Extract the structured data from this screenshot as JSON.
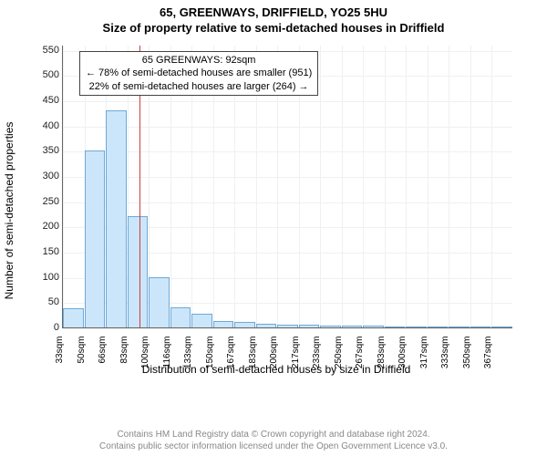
{
  "header": {
    "address": "65, GREENWAYS, DRIFFIELD, YO25 5HU",
    "subtitle": "Size of property relative to semi-detached houses in Driffield"
  },
  "chart": {
    "type": "histogram",
    "ylabel": "Number of semi-detached properties",
    "xlabel": "Distribution of semi-detached houses by size in Driffield",
    "ylim": [
      0,
      560
    ],
    "ytick_step": 50,
    "yticks": [
      0,
      50,
      100,
      150,
      200,
      250,
      300,
      350,
      400,
      450,
      500,
      550
    ],
    "xticks": [
      "33sqm",
      "50sqm",
      "66sqm",
      "83sqm",
      "100sqm",
      "116sqm",
      "133sqm",
      "150sqm",
      "167sqm",
      "183sqm",
      "200sqm",
      "217sqm",
      "233sqm",
      "250sqm",
      "267sqm",
      "283sqm",
      "300sqm",
      "317sqm",
      "333sqm",
      "350sqm",
      "367sqm"
    ],
    "xtick_step_sqm": 16.66,
    "x_min_sqm": 33,
    "x_max_sqm": 380,
    "bar_color": "#cbe6fa",
    "bar_border": "#6ea8d8",
    "grid_color": "#eef0f2",
    "background_color": "#ffffff",
    "values": [
      38,
      350,
      430,
      220,
      100,
      40,
      28,
      12,
      10,
      8,
      6,
      5,
      4,
      3,
      3,
      2,
      2,
      2,
      2,
      2,
      1
    ],
    "annotation": {
      "sqm": 92,
      "line_color": "#d43a3a",
      "box_border": "#444444",
      "line1": "65 GREENWAYS: 92sqm",
      "line2": "← 78% of semi-detached houses are smaller (951)",
      "line3": "22% of semi-detached houses are larger (264) →"
    }
  },
  "footer": {
    "line1": "Contains HM Land Registry data © Crown copyright and database right 2024.",
    "line2": "Contains public sector information licensed under the Open Government Licence v3.0."
  }
}
